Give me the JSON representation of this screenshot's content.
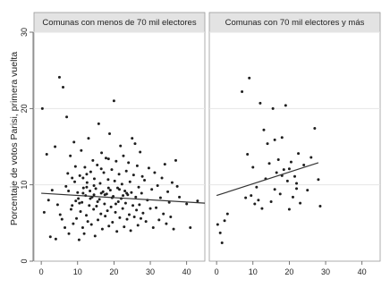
{
  "chart_data": {
    "type": "scatter",
    "ylabel": "Porcentaje de votos Parisi, primera vuelta",
    "ylim": [
      0,
      30
    ],
    "yticks": [
      0,
      10,
      20,
      30
    ],
    "grid": true,
    "panels": [
      {
        "title": "Comunas con menos de 70 mil electores",
        "xlim": [
          -2,
          45
        ],
        "xticks": [
          0,
          10,
          20,
          30,
          40
        ],
        "fit_line": [
          [
            0,
            8.9
          ],
          [
            45,
            7.6
          ]
        ],
        "points": [
          [
            0.3,
            20
          ],
          [
            0.8,
            6.4
          ],
          [
            1.5,
            14
          ],
          [
            2,
            8
          ],
          [
            2.5,
            3.2
          ],
          [
            3,
            9.3
          ],
          [
            3.8,
            15
          ],
          [
            4,
            2.9
          ],
          [
            4.5,
            7.4
          ],
          [
            5,
            24.1
          ],
          [
            5.2,
            6.1
          ],
          [
            5.7,
            5.5
          ],
          [
            6,
            22.8
          ],
          [
            6.5,
            4.4
          ],
          [
            6.8,
            9.8
          ],
          [
            7,
            18.9
          ],
          [
            7.3,
            11.5
          ],
          [
            7.6,
            3.6
          ],
          [
            8,
            13.8
          ],
          [
            8.2,
            6.8
          ],
          [
            8.5,
            7.3
          ],
          [
            8.8,
            4.9
          ],
          [
            9,
            15.6
          ],
          [
            9.2,
            10.4
          ],
          [
            9.4,
            12.4
          ],
          [
            9.7,
            5.6
          ],
          [
            10,
            9
          ],
          [
            10.2,
            8.2
          ],
          [
            10.4,
            2.8
          ],
          [
            10.6,
            11.2
          ],
          [
            10.8,
            6.5
          ],
          [
            11,
            14.5
          ],
          [
            11.2,
            7.7
          ],
          [
            11.4,
            4.4
          ],
          [
            11.6,
            9.6
          ],
          [
            11.8,
            3.6
          ],
          [
            12,
            12.3
          ],
          [
            12.2,
            8.6
          ],
          [
            12.4,
            6
          ],
          [
            12.6,
            10.3
          ],
          [
            12.8,
            5.2
          ],
          [
            13,
            16.1
          ],
          [
            13.2,
            7.3
          ],
          [
            13.4,
            9.2
          ],
          [
            13.6,
            11.7
          ],
          [
            13.8,
            4.8
          ],
          [
            14,
            8.4
          ],
          [
            14.2,
            13.2
          ],
          [
            14.4,
            6.8
          ],
          [
            14.6,
            10.8
          ],
          [
            14.8,
            3.3
          ],
          [
            15,
            9.5
          ],
          [
            15.2,
            7.2
          ],
          [
            15.4,
            12.6
          ],
          [
            15.6,
            5.4
          ],
          [
            15.8,
            18
          ],
          [
            16,
            8.1
          ],
          [
            16.2,
            10.2
          ],
          [
            16.4,
            6.2
          ],
          [
            16.6,
            14.2
          ],
          [
            16.8,
            4.2
          ],
          [
            17,
            9.1
          ],
          [
            17.2,
            11.6
          ],
          [
            17.4,
            7.5
          ],
          [
            17.6,
            5.9
          ],
          [
            17.8,
            13.5
          ],
          [
            18,
            8.8
          ],
          [
            18.2,
            6.6
          ],
          [
            18.4,
            10.7
          ],
          [
            18.6,
            4.6
          ],
          [
            18.8,
            16.7
          ],
          [
            19,
            9.3
          ],
          [
            19.2,
            7.1
          ],
          [
            19.4,
            12
          ],
          [
            19.6,
            5.1
          ],
          [
            19.8,
            8.5
          ],
          [
            20,
            21
          ],
          [
            20.2,
            10.5
          ],
          [
            20.4,
            6.4
          ],
          [
            20.6,
            13.1
          ],
          [
            20.8,
            3.9
          ],
          [
            21,
            9.6
          ],
          [
            21.2,
            7.8
          ],
          [
            21.4,
            11.4
          ],
          [
            21.6,
            5.7
          ],
          [
            21.8,
            15.1
          ],
          [
            22,
            8.2
          ],
          [
            22.2,
            10.1
          ],
          [
            22.4,
            6.9
          ],
          [
            22.6,
            13.8
          ],
          [
            22.8,
            4.5
          ],
          [
            23,
            9.2
          ],
          [
            23.2,
            7.6
          ],
          [
            23.4,
            11.8
          ],
          [
            23.6,
            5.5
          ],
          [
            23.8,
            8.7
          ],
          [
            24,
            12.9
          ],
          [
            24.2,
            6.1
          ],
          [
            24.4,
            10.4
          ],
          [
            24.6,
            4
          ],
          [
            24.8,
            9
          ],
          [
            25,
            16.1
          ],
          [
            25.2,
            7.3
          ],
          [
            25.4,
            11.3
          ],
          [
            25.6,
            5.8
          ],
          [
            25.8,
            15.4
          ],
          [
            26,
            8.4
          ],
          [
            26.2,
            6.7
          ],
          [
            26.4,
            12.5
          ],
          [
            26.6,
            4.7
          ],
          [
            26.8,
            9.7
          ],
          [
            27,
            7.4
          ],
          [
            27.2,
            14.3
          ],
          [
            27.4,
            5.6
          ],
          [
            27.6,
            8.9
          ],
          [
            27.8,
            11.1
          ],
          [
            28,
            6.3
          ],
          [
            28.4,
            10.6
          ],
          [
            28.8,
            5.2
          ],
          [
            29.2,
            8
          ],
          [
            29.6,
            12.2
          ],
          [
            30,
            6.9
          ],
          [
            30.4,
            9.4
          ],
          [
            30.8,
            4.4
          ],
          [
            31.2,
            11.6
          ],
          [
            31.6,
            7
          ],
          [
            32,
            9.9
          ],
          [
            32.4,
            5.4
          ],
          [
            32.8,
            8.3
          ],
          [
            33.2,
            10.9
          ],
          [
            33.6,
            6.2
          ],
          [
            34,
            12.7
          ],
          [
            34.4,
            4.9
          ],
          [
            34.8,
            9.1
          ],
          [
            35.2,
            7.7
          ],
          [
            35.6,
            5.8
          ],
          [
            36,
            10.3
          ],
          [
            36.4,
            4.2
          ],
          [
            37,
            13.2
          ],
          [
            37.4,
            9.8
          ],
          [
            38,
            8.4
          ],
          [
            40,
            7.5
          ],
          [
            41,
            4.4
          ],
          [
            43,
            7.9
          ],
          [
            9.5,
            7.9
          ],
          [
            11.5,
            8.9
          ],
          [
            12.5,
            9.7
          ],
          [
            14.5,
            9.9
          ],
          [
            16.5,
            8.9
          ],
          [
            18.5,
            9.6
          ],
          [
            20.5,
            7.5
          ],
          [
            22.5,
            8.6
          ],
          [
            13.5,
            8.2
          ],
          [
            15.5,
            7.8
          ],
          [
            17.5,
            8.7
          ],
          [
            19.5,
            8.3
          ],
          [
            21.5,
            9.4
          ],
          [
            23.5,
            8.9
          ],
          [
            10.5,
            7.6
          ],
          [
            11.5,
            10.9
          ],
          [
            12.5,
            11.4
          ],
          [
            14.5,
            8.7
          ],
          [
            16.5,
            12.1
          ],
          [
            18.5,
            13.4
          ],
          [
            7.5,
            9.2
          ],
          [
            8.5,
            10.9
          ]
        ]
      },
      {
        "title": "Comunas con 70 mil electores y más",
        "xlim": [
          -2,
          45
        ],
        "xticks": [
          0,
          10,
          20,
          30,
          40
        ],
        "fit_line": [
          [
            0,
            8.6
          ],
          [
            28,
            12.9
          ]
        ],
        "points": [
          [
            0.3,
            4.8
          ],
          [
            1,
            3.7
          ],
          [
            1.5,
            2.4
          ],
          [
            2.2,
            5.3
          ],
          [
            3,
            6.2
          ],
          [
            7,
            22.2
          ],
          [
            8,
            8.3
          ],
          [
            8.5,
            14
          ],
          [
            9,
            24
          ],
          [
            9.5,
            8.6
          ],
          [
            10,
            12.3
          ],
          [
            10.5,
            7.5
          ],
          [
            11,
            9.7
          ],
          [
            11.5,
            8
          ],
          [
            12,
            20.7
          ],
          [
            12.5,
            6.9
          ],
          [
            13,
            17.2
          ],
          [
            13.5,
            10.8
          ],
          [
            14,
            15.4
          ],
          [
            14.5,
            12.8
          ],
          [
            15,
            7.8
          ],
          [
            15.5,
            20
          ],
          [
            16,
            9.4
          ],
          [
            16.5,
            11.6
          ],
          [
            17,
            13.3
          ],
          [
            17.5,
            8.8
          ],
          [
            18,
            16.2
          ],
          [
            18.5,
            12
          ],
          [
            19,
            20.4
          ],
          [
            19.5,
            10.5
          ],
          [
            20,
            6.8
          ],
          [
            20.5,
            13
          ],
          [
            21,
            8.4
          ],
          [
            21.5,
            11.1
          ],
          [
            22,
            9.5
          ],
          [
            22.5,
            14.1
          ],
          [
            23,
            7.6
          ],
          [
            24,
            12.6
          ],
          [
            25,
            9.3
          ],
          [
            26,
            13.6
          ],
          [
            27,
            17.4
          ],
          [
            28,
            10.7
          ],
          [
            28.5,
            7.2
          ],
          [
            16,
            15.9
          ],
          [
            18,
            11.2
          ],
          [
            20,
            12.1
          ],
          [
            22,
            10.2
          ]
        ]
      }
    ]
  }
}
